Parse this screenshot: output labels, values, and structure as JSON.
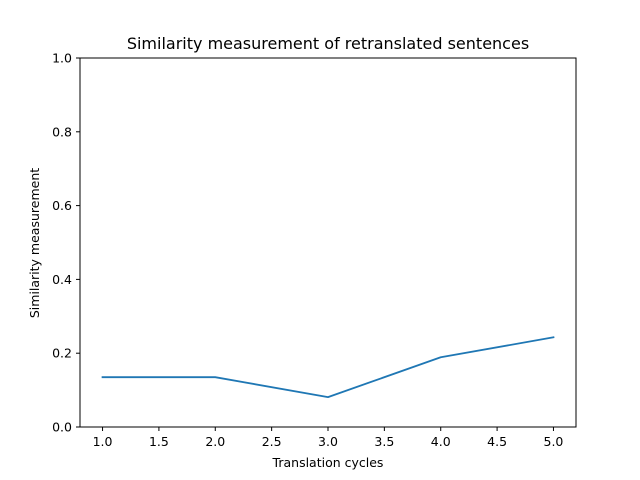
{
  "chart_data": {
    "type": "line",
    "title": "Similarity measurement of retranslated sentences",
    "xlabel": "Translation cycles",
    "ylabel": "Similarity measurement",
    "xlim": [
      0.8,
      5.2
    ],
    "ylim": [
      0.0,
      1.0
    ],
    "xticks": [
      "1.0",
      "1.5",
      "2.0",
      "2.5",
      "3.0",
      "3.5",
      "4.0",
      "4.5",
      "5.0"
    ],
    "yticks": [
      "0.0",
      "0.2",
      "0.4",
      "0.6",
      "0.8",
      "1.0"
    ],
    "grid": false,
    "series": [
      {
        "x": [
          1.0,
          2.0,
          3.0,
          4.0,
          5.0
        ],
        "y": [
          0.135,
          0.135,
          0.081,
          0.189,
          0.243
        ],
        "color": "#1f77b4"
      }
    ]
  }
}
